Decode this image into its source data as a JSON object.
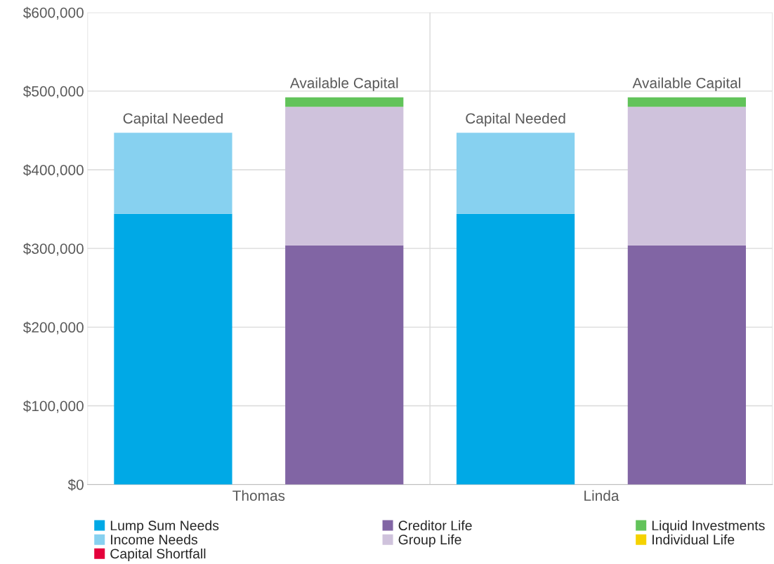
{
  "chart_data": {
    "type": "bar",
    "stacked": true,
    "categories": [
      "Capital Needed",
      "Available Capital",
      "Capital Needed",
      "Available Capital"
    ],
    "series": [
      {
        "name": "Lump Sum Needs",
        "color": "#00a9e6",
        "values": [
          344000,
          null,
          344000,
          null
        ]
      },
      {
        "name": "Income Needs",
        "color": "#87d1f0",
        "values": [
          103000,
          null,
          103000,
          null
        ]
      },
      {
        "name": "Capital Shortfall",
        "color": "#e4003b",
        "values": [
          null,
          null,
          null,
          null
        ]
      },
      {
        "name": "Creditor Life",
        "color": "#8165a4",
        "values": [
          null,
          304000,
          null,
          304000
        ]
      },
      {
        "name": "Group Life",
        "color": "#cfc2dc",
        "values": [
          null,
          176000,
          null,
          176000
        ]
      },
      {
        "name": "Liquid Investments",
        "color": "#62c35a",
        "values": [
          null,
          12000,
          null,
          12000
        ]
      },
      {
        "name": "Individual Life",
        "color": "#f5d200",
        "values": [
          null,
          null,
          null,
          null
        ]
      }
    ],
    "annotations": [
      "Thomas",
      "Linda"
    ],
    "ylim": [
      0,
      600000
    ],
    "yticks": [
      {
        "value": 0,
        "label": "$0"
      },
      {
        "value": 100000,
        "label": "$100,000"
      },
      {
        "value": 200000,
        "label": "$200,000"
      },
      {
        "value": 300000,
        "label": "$300,000"
      },
      {
        "value": 400000,
        "label": "$400,000"
      },
      {
        "value": 500000,
        "label": "$500,000"
      },
      {
        "value": 600000,
        "label": "$600,000"
      }
    ],
    "grid": true,
    "legend": "bottom"
  }
}
